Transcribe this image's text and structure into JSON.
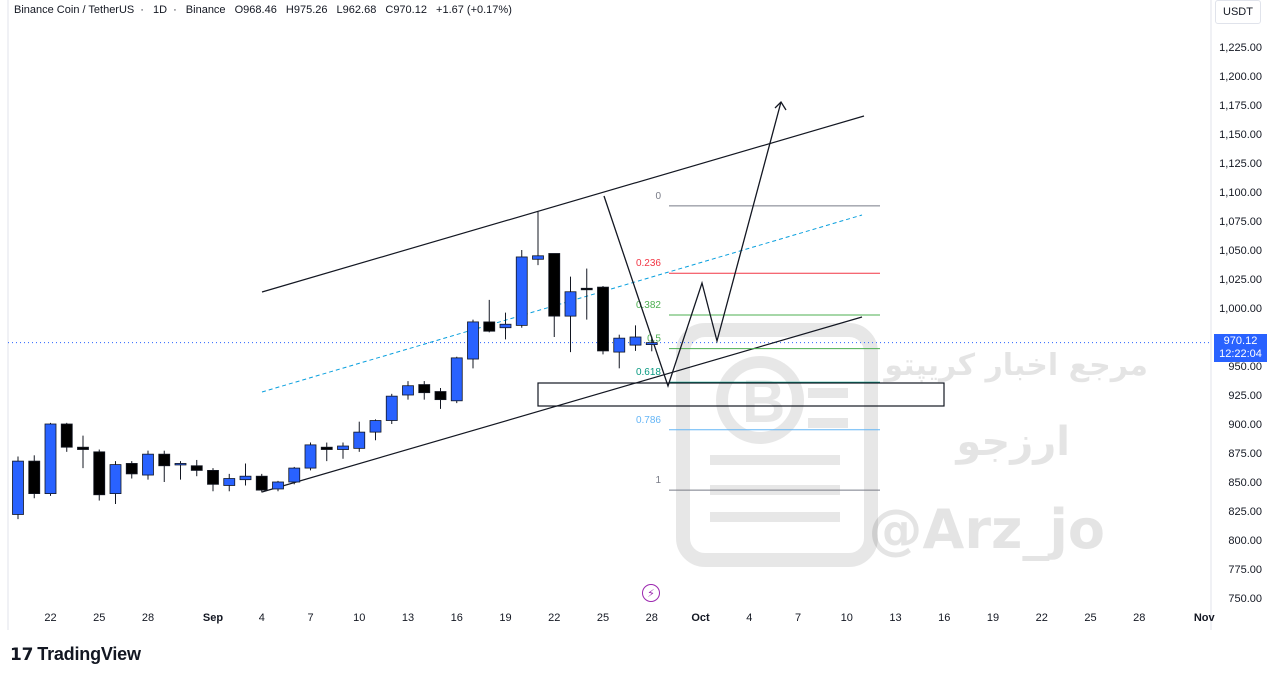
{
  "header": {
    "symbol": "Binance Coin / TetherUS",
    "interval": "1D",
    "exchange": "Binance",
    "open": "O968.46",
    "high": "H975.26",
    "low": "L962.68",
    "close": "C970.12",
    "change": "+1.67 (+0.17%)"
  },
  "currency": "USDT",
  "last_price": {
    "value": "970.12",
    "countdown": "12:22:04"
  },
  "branding": {
    "logo_text": "TradingView"
  },
  "watermark": {
    "line1": "مرجع اخبار کریپتو",
    "line2": "ارزجو",
    "handle": "@Arz_jo"
  },
  "colors": {
    "up": "#2962ff",
    "down": "#000000",
    "fib_0": "#787b86",
    "fib_0236": "#f23645",
    "fib_0382": "#4caf50",
    "fib_05": "#4caf50",
    "fib_0618": "#089981",
    "fib_0786": "#64b5f6",
    "fib_1": "#787b86"
  },
  "chart_data": {
    "type": "candlestick",
    "ylim": [
      740,
      1240
    ],
    "y_ticks": [
      750,
      775,
      800,
      825,
      850,
      875,
      900,
      925,
      950,
      975,
      1000,
      1025,
      1050,
      1075,
      1100,
      1125,
      1150,
      1175,
      1200,
      1225
    ],
    "y_tick_labels": [
      "750.00",
      "775.00",
      "800.00",
      "825.00",
      "850.00",
      "875.00",
      "900.00",
      "925.00",
      "950.00",
      "",
      "1,000.00",
      "1,025.00",
      "1,050.00",
      "1,075.00",
      "1,100.00",
      "1,125.00",
      "1,150.00",
      "1,175.00",
      "1,200.00",
      "1,225.00"
    ],
    "x_labels": [
      {
        "i": 2,
        "label": "22"
      },
      {
        "i": 5,
        "label": "25"
      },
      {
        "i": 8,
        "label": "28"
      },
      {
        "i": 12,
        "label": "Sep"
      },
      {
        "i": 15,
        "label": "4"
      },
      {
        "i": 18,
        "label": "7"
      },
      {
        "i": 21,
        "label": "10"
      },
      {
        "i": 24,
        "label": "13"
      },
      {
        "i": 27,
        "label": "16"
      },
      {
        "i": 30,
        "label": "19"
      },
      {
        "i": 33,
        "label": "22"
      },
      {
        "i": 36,
        "label": "25"
      },
      {
        "i": 39,
        "label": "28"
      },
      {
        "i": 42,
        "label": "Oct"
      },
      {
        "i": 45,
        "label": "4"
      },
      {
        "i": 48,
        "label": "7"
      },
      {
        "i": 51,
        "label": "10"
      },
      {
        "i": 54,
        "label": "13"
      },
      {
        "i": 57,
        "label": "16"
      },
      {
        "i": 60,
        "label": "19"
      },
      {
        "i": 63,
        "label": "22"
      },
      {
        "i": 66,
        "label": "25"
      },
      {
        "i": 69,
        "label": "28"
      },
      {
        "i": 73,
        "label": "Nov"
      }
    ],
    "candles": [
      {
        "o": 822,
        "h": 872,
        "l": 818,
        "c": 868
      },
      {
        "o": 868,
        "h": 873,
        "l": 836,
        "c": 840
      },
      {
        "o": 840,
        "h": 901,
        "l": 838,
        "c": 900
      },
      {
        "o": 900,
        "h": 901,
        "l": 876,
        "c": 880
      },
      {
        "o": 880,
        "h": 890,
        "l": 862,
        "c": 878
      },
      {
        "o": 876,
        "h": 878,
        "l": 834,
        "c": 839
      },
      {
        "o": 840,
        "h": 868,
        "l": 831,
        "c": 865
      },
      {
        "o": 866,
        "h": 868,
        "l": 853,
        "c": 857
      },
      {
        "o": 856,
        "h": 877,
        "l": 852,
        "c": 874
      },
      {
        "o": 874,
        "h": 877,
        "l": 850,
        "c": 864
      },
      {
        "o": 865,
        "h": 868,
        "l": 852,
        "c": 866
      },
      {
        "o": 864,
        "h": 869,
        "l": 855,
        "c": 860
      },
      {
        "o": 860,
        "h": 862,
        "l": 842,
        "c": 848
      },
      {
        "o": 847,
        "h": 857,
        "l": 842,
        "c": 853
      },
      {
        "o": 852,
        "h": 866,
        "l": 847,
        "c": 855
      },
      {
        "o": 855,
        "h": 857,
        "l": 841,
        "c": 843
      },
      {
        "o": 844,
        "h": 851,
        "l": 842,
        "c": 850
      },
      {
        "o": 850,
        "h": 863,
        "l": 848,
        "c": 862
      },
      {
        "o": 862,
        "h": 884,
        "l": 860,
        "c": 882
      },
      {
        "o": 880,
        "h": 884,
        "l": 868,
        "c": 878
      },
      {
        "o": 878,
        "h": 884,
        "l": 870,
        "c": 881
      },
      {
        "o": 879,
        "h": 902,
        "l": 876,
        "c": 893
      },
      {
        "o": 893,
        "h": 904,
        "l": 886,
        "c": 903
      },
      {
        "o": 903,
        "h": 926,
        "l": 900,
        "c": 924
      },
      {
        "o": 925,
        "h": 937,
        "l": 921,
        "c": 933
      },
      {
        "o": 934,
        "h": 937,
        "l": 921,
        "c": 927
      },
      {
        "o": 928,
        "h": 931,
        "l": 913,
        "c": 921
      },
      {
        "o": 920,
        "h": 958,
        "l": 918,
        "c": 957
      },
      {
        "o": 956,
        "h": 990,
        "l": 948,
        "c": 988
      },
      {
        "o": 988,
        "h": 1007,
        "l": 979,
        "c": 980
      },
      {
        "o": 983,
        "h": 996,
        "l": 973,
        "c": 986
      },
      {
        "o": 985,
        "h": 1050,
        "l": 983,
        "c": 1044
      },
      {
        "o": 1042,
        "h": 1083,
        "l": 1037,
        "c": 1045
      },
      {
        "o": 1047,
        "h": 1047,
        "l": 975,
        "c": 993
      },
      {
        "o": 993,
        "h": 1027,
        "l": 962,
        "c": 1014
      },
      {
        "o": 1017,
        "h": 1034,
        "l": 990,
        "c": 1016
      },
      {
        "o": 1018,
        "h": 1019,
        "l": 960,
        "c": 963
      },
      {
        "o": 962,
        "h": 977,
        "l": 948,
        "c": 974
      },
      {
        "o": 968,
        "h": 985,
        "l": 963,
        "c": 975
      },
      {
        "o": 968.46,
        "h": 975.26,
        "l": 962.68,
        "c": 970.12
      }
    ],
    "fibonacci": {
      "levels": [
        {
          "ratio": "0",
          "price": 1088
        },
        {
          "ratio": "0.236",
          "price": 1030
        },
        {
          "ratio": "0.382",
          "price": 994
        },
        {
          "ratio": "0.5",
          "price": 965
        },
        {
          "ratio": "0.618",
          "price": 936
        },
        {
          "ratio": "0.786",
          "price": 895
        },
        {
          "ratio": "1",
          "price": 843
        }
      ]
    },
    "last_price": 970.12
  }
}
